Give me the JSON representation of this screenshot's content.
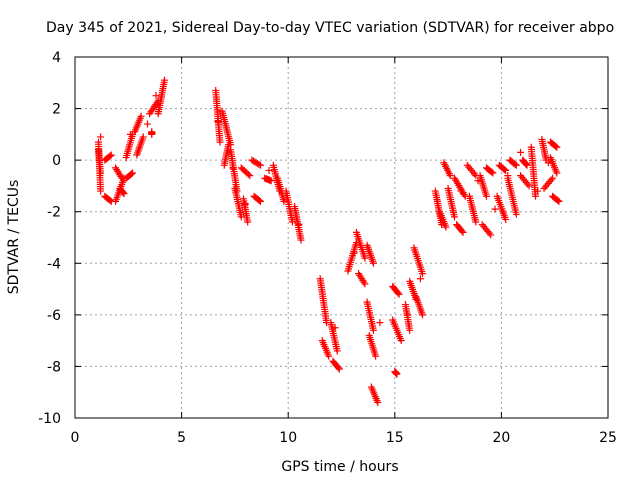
{
  "chart_data": {
    "type": "scatter",
    "title": "Day 345 of 2021, Sidereal Day-to-day VTEC variation (SDTVAR) for receiver abpo",
    "xlabel": "GPS time / hours",
    "ylabel": "SDTVAR / TECUs",
    "xlim": [
      0,
      25
    ],
    "ylim": [
      -10,
      4
    ],
    "x_ticks": [
      0,
      5,
      10,
      15,
      20,
      25
    ],
    "y_ticks": [
      -10,
      -8,
      -6,
      -4,
      -2,
      0,
      2,
      4
    ],
    "x_tick_labels": [
      "0",
      "5",
      "10",
      "15",
      "20",
      "25"
    ],
    "y_tick_labels": [
      "-10",
      "-8",
      "-6",
      "-4",
      "-2",
      "0",
      "2",
      "4"
    ],
    "grid": true,
    "marker": "plus",
    "color": "#ff0000",
    "segments": [
      {
        "x": [
          1.1,
          1.2
        ],
        "y": [
          0.7,
          -1.2
        ]
      },
      {
        "x": [
          1.1,
          1.2
        ],
        "y": [
          0.4,
          -0.5
        ]
      },
      {
        "x": [
          1.4,
          1.7
        ],
        "y": [
          0.0,
          0.2
        ]
      },
      {
        "x": [
          1.4,
          1.7
        ],
        "y": [
          -1.4,
          -1.6
        ]
      },
      {
        "x": [
          1.9,
          2.3
        ],
        "y": [
          -1.6,
          -0.7
        ]
      },
      {
        "x": [
          1.9,
          2.2
        ],
        "y": [
          -0.3,
          -0.7
        ]
      },
      {
        "x": [
          2.1,
          2.3
        ],
        "y": [
          -1.1,
          -1.3
        ]
      },
      {
        "x": [
          2.4,
          2.7
        ],
        "y": [
          0.1,
          1.0
        ]
      },
      {
        "x": [
          2.4,
          2.7
        ],
        "y": [
          -0.7,
          -0.5
        ]
      },
      {
        "x": [
          2.8,
          3.1
        ],
        "y": [
          1.1,
          1.7
        ]
      },
      {
        "x": [
          2.9,
          3.2
        ],
        "y": [
          0.2,
          0.9
        ]
      },
      {
        "x": [
          3.5,
          3.9
        ],
        "y": [
          1.8,
          2.3
        ]
      },
      {
        "x": [
          3.9,
          4.2
        ],
        "y": [
          1.8,
          3.1
        ]
      },
      {
        "x": [
          3.6,
          3.6
        ],
        "y": [
          1.0,
          1.1
        ]
      },
      {
        "x": [
          6.6,
          6.8
        ],
        "y": [
          2.7,
          0.7
        ]
      },
      {
        "x": [
          6.9,
          7.3
        ],
        "y": [
          1.9,
          0.6
        ]
      },
      {
        "x": [
          7.0,
          7.2
        ],
        "y": [
          -0.2,
          0.6
        ]
      },
      {
        "x": [
          7.3,
          7.6
        ],
        "y": [
          0.4,
          -1.2
        ]
      },
      {
        "x": [
          7.5,
          7.8
        ],
        "y": [
          -1.1,
          -2.2
        ]
      },
      {
        "x": [
          7.8,
          8.2
        ],
        "y": [
          -0.3,
          -0.6
        ]
      },
      {
        "x": [
          7.9,
          8.1
        ],
        "y": [
          -1.5,
          -2.4
        ]
      },
      {
        "x": [
          8.3,
          8.7
        ],
        "y": [
          0.0,
          -0.2
        ]
      },
      {
        "x": [
          8.4,
          8.7
        ],
        "y": [
          -1.4,
          -1.6
        ]
      },
      {
        "x": [
          8.9,
          9.2
        ],
        "y": [
          -0.7,
          -0.8
        ]
      },
      {
        "x": [
          9.3,
          9.6
        ],
        "y": [
          -0.2,
          -1.2
        ]
      },
      {
        "x": [
          9.5,
          9.8
        ],
        "y": [
          -0.7,
          -1.6
        ]
      },
      {
        "x": [
          9.9,
          10.2
        ],
        "y": [
          -1.2,
          -2.4
        ]
      },
      {
        "x": [
          10.3,
          10.6
        ],
        "y": [
          -1.8,
          -3.1
        ]
      },
      {
        "x": [
          11.5,
          11.8
        ],
        "y": [
          -4.6,
          -6.3
        ]
      },
      {
        "x": [
          11.6,
          11.9
        ],
        "y": [
          -7.0,
          -7.6
        ]
      },
      {
        "x": [
          12.0,
          12.3
        ],
        "y": [
          -6.3,
          -7.4
        ]
      },
      {
        "x": [
          12.1,
          12.4
        ],
        "y": [
          -7.8,
          -8.1
        ]
      },
      {
        "x": [
          12.8,
          13.2
        ],
        "y": [
          -4.3,
          -3.2
        ]
      },
      {
        "x": [
          13.2,
          13.6
        ],
        "y": [
          -2.8,
          -3.8
        ]
      },
      {
        "x": [
          13.3,
          13.6
        ],
        "y": [
          -4.4,
          -4.8
        ]
      },
      {
        "x": [
          13.7,
          14.0
        ],
        "y": [
          -3.3,
          -4.0
        ]
      },
      {
        "x": [
          13.7,
          14.0
        ],
        "y": [
          -5.5,
          -6.6
        ]
      },
      {
        "x": [
          13.8,
          14.1
        ],
        "y": [
          -6.8,
          -7.6
        ]
      },
      {
        "x": [
          13.9,
          14.2
        ],
        "y": [
          -8.8,
          -9.4
        ]
      },
      {
        "x": [
          14.9,
          15.2
        ],
        "y": [
          -4.9,
          -5.2
        ]
      },
      {
        "x": [
          14.9,
          15.3
        ],
        "y": [
          -6.2,
          -7.0
        ]
      },
      {
        "x": [
          15.0,
          15.1
        ],
        "y": [
          -8.2,
          -8.3
        ]
      },
      {
        "x": [
          15.5,
          15.7
        ],
        "y": [
          -5.6,
          -6.6
        ]
      },
      {
        "x": [
          15.7,
          16.0
        ],
        "y": [
          -4.7,
          -5.4
        ]
      },
      {
        "x": [
          15.9,
          16.3
        ],
        "y": [
          -3.4,
          -4.4
        ]
      },
      {
        "x": [
          16.0,
          16.3
        ],
        "y": [
          -5.3,
          -6.0
        ]
      },
      {
        "x": [
          16.9,
          17.2
        ],
        "y": [
          -1.2,
          -2.5
        ]
      },
      {
        "x": [
          17.1,
          17.4
        ],
        "y": [
          -2.0,
          -2.6
        ]
      },
      {
        "x": [
          17.3,
          17.6
        ],
        "y": [
          -0.1,
          -0.6
        ]
      },
      {
        "x": [
          17.5,
          17.8
        ],
        "y": [
          -1.1,
          -2.2
        ]
      },
      {
        "x": [
          17.8,
          18.3
        ],
        "y": [
          -0.7,
          -1.4
        ]
      },
      {
        "x": [
          17.9,
          18.2
        ],
        "y": [
          -2.5,
          -2.8
        ]
      },
      {
        "x": [
          18.4,
          18.8
        ],
        "y": [
          -0.2,
          -0.6
        ]
      },
      {
        "x": [
          18.5,
          18.8
        ],
        "y": [
          -1.4,
          -2.4
        ]
      },
      {
        "x": [
          19.0,
          19.3
        ],
        "y": [
          -0.6,
          -1.4
        ]
      },
      {
        "x": [
          19.1,
          19.5
        ],
        "y": [
          -2.5,
          -2.9
        ]
      },
      {
        "x": [
          19.3,
          19.6
        ],
        "y": [
          -0.3,
          -0.5
        ]
      },
      {
        "x": [
          19.8,
          20.2
        ],
        "y": [
          -1.4,
          -2.3
        ]
      },
      {
        "x": [
          19.9,
          20.2
        ],
        "y": [
          -0.2,
          -0.4
        ]
      },
      {
        "x": [
          20.3,
          20.7
        ],
        "y": [
          -0.7,
          -2.1
        ]
      },
      {
        "x": [
          20.4,
          20.7
        ],
        "y": [
          0.0,
          -0.2
        ]
      },
      {
        "x": [
          20.9,
          21.3
        ],
        "y": [
          -0.6,
          -1.0
        ]
      },
      {
        "x": [
          21.0,
          21.2
        ],
        "y": [
          0.0,
          -0.2
        ]
      },
      {
        "x": [
          21.4,
          21.6
        ],
        "y": [
          0.5,
          -1.4
        ]
      },
      {
        "x": [
          21.9,
          22.1
        ],
        "y": [
          0.8,
          0.0
        ]
      },
      {
        "x": [
          22.0,
          22.4
        ],
        "y": [
          -1.1,
          -0.7
        ]
      },
      {
        "x": [
          22.3,
          22.6
        ],
        "y": [
          0.7,
          0.5
        ]
      },
      {
        "x": [
          22.3,
          22.6
        ],
        "y": [
          0.1,
          -0.5
        ]
      },
      {
        "x": [
          22.4,
          22.7
        ],
        "y": [
          -1.4,
          -1.6
        ]
      }
    ],
    "extra_points": {
      "x": [
        1.2,
        2.6,
        3.4,
        3.8,
        6.7,
        7.4,
        8.0,
        9.1,
        10.5,
        12.2,
        13.1,
        14.3,
        15.6,
        16.2,
        17.0,
        18.1,
        18.9,
        19.7,
        20.3,
        20.9,
        21.7,
        22.2
      ],
      "y": [
        0.9,
        1.0,
        1.4,
        2.5,
        1.5,
        -0.3,
        -1.7,
        -0.4,
        -2.5,
        -6.5,
        -3.6,
        -6.3,
        -6.0,
        -4.6,
        -1.6,
        -1.2,
        -0.8,
        -1.9,
        -0.6,
        0.3,
        -1.2,
        -0.1
      ]
    }
  }
}
